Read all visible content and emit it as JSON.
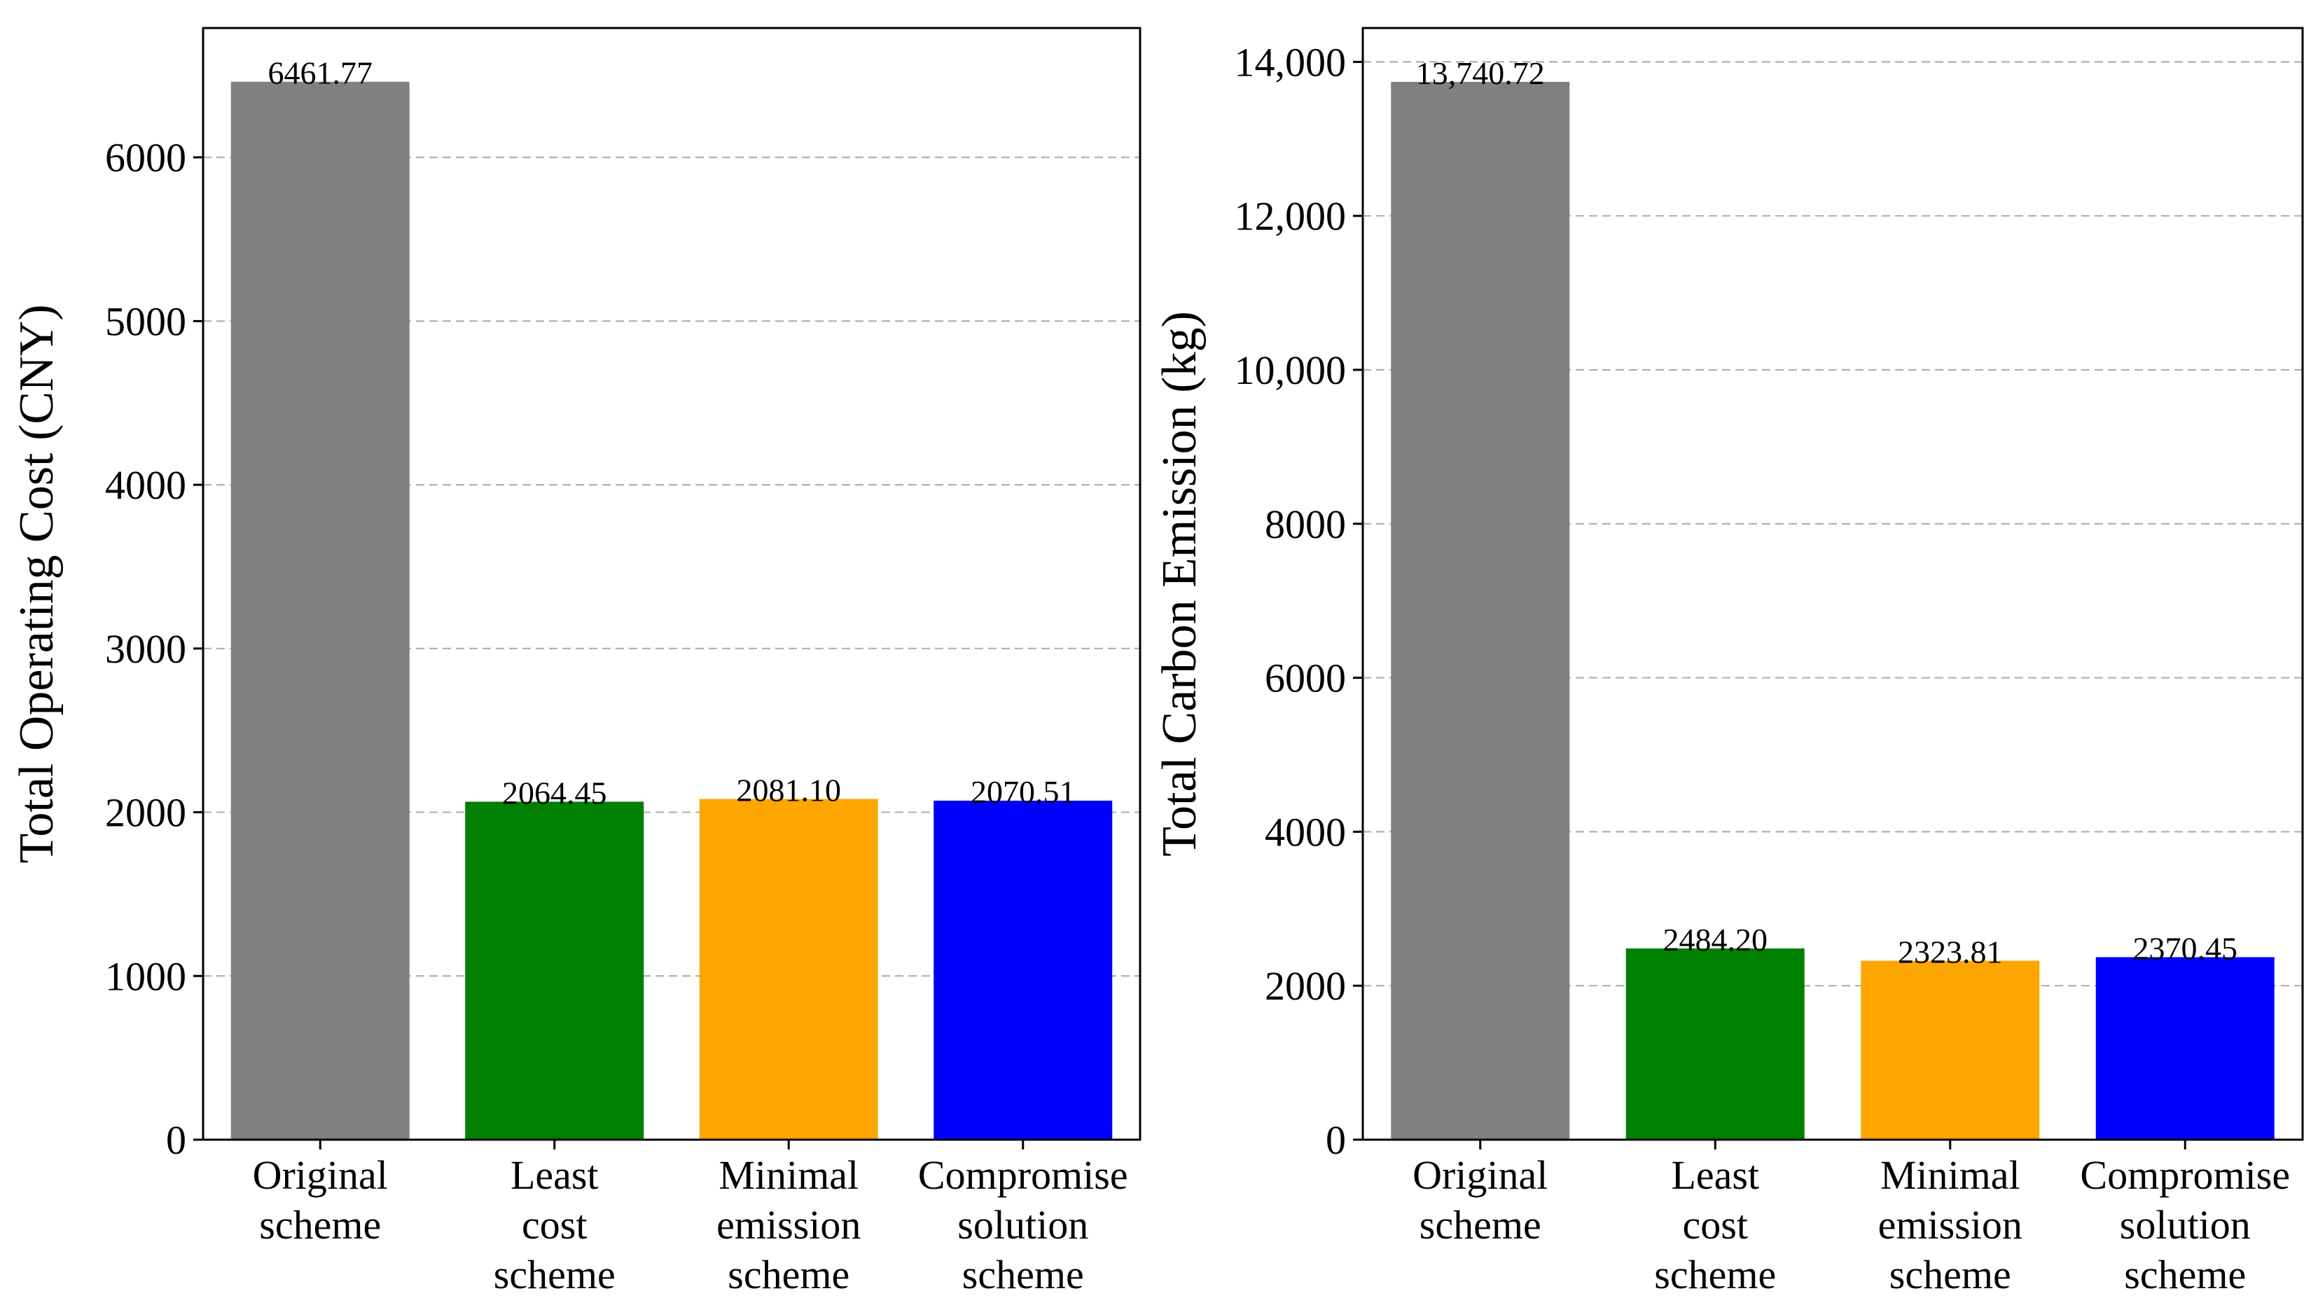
{
  "chart_data": [
    {
      "type": "bar",
      "title": "",
      "xlabel": "",
      "ylabel": "Total Operating Cost (CNY)",
      "categories": [
        [
          "Original",
          "scheme"
        ],
        [
          "Least",
          "cost",
          "scheme"
        ],
        [
          "Minimal",
          "emission",
          "scheme"
        ],
        [
          "Compromise",
          "solution",
          "scheme"
        ]
      ],
      "values": [
        6461.77,
        2064.45,
        2081.1,
        2070.51
      ],
      "value_labels": [
        "6461.77",
        "2064.45",
        "2081.10",
        "2070.51"
      ],
      "colors": [
        "#808080",
        "#008000",
        "#FFA500",
        "#0000FF"
      ],
      "ylim": [
        0,
        6790
      ],
      "yticks": [
        0,
        1000,
        2000,
        3000,
        4000,
        5000,
        6000
      ],
      "ytick_labels": [
        "0",
        "1000",
        "2000",
        "3000",
        "4000",
        "5000",
        "6000"
      ],
      "grid": "y-dashed",
      "legend": "none"
    },
    {
      "type": "bar",
      "title": "",
      "xlabel": "",
      "ylabel": "Total Carbon Emission (kg)",
      "categories": [
        [
          "Original",
          "scheme"
        ],
        [
          "Least",
          "cost",
          "scheme"
        ],
        [
          "Minimal",
          "emission",
          "scheme"
        ],
        [
          "Compromise",
          "solution",
          "scheme"
        ]
      ],
      "values": [
        13740.72,
        2484.2,
        2323.81,
        2370.45
      ],
      "value_labels": [
        "13,740.72",
        "2484.20",
        "2323.81",
        "2370.45"
      ],
      "colors": [
        "#808080",
        "#008000",
        "#FFA500",
        "#0000FF"
      ],
      "ylim": [
        0,
        14440
      ],
      "yticks": [
        0,
        2000,
        4000,
        6000,
        8000,
        10000,
        12000,
        14000
      ],
      "ytick_labels": [
        "0",
        "2000",
        "4000",
        "6000",
        "8000",
        "10,000",
        "12,000",
        "14,000"
      ],
      "grid": "y-dashed",
      "legend": "none"
    }
  ]
}
